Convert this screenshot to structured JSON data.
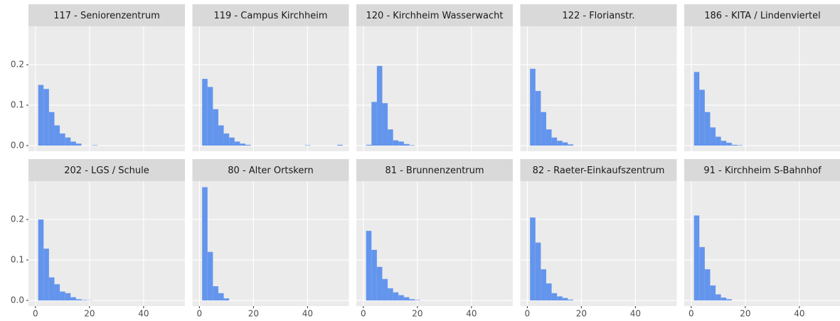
{
  "chart_data": [
    {
      "type": "histogram",
      "title": "117 - Seniorenzentrum",
      "bins": [
        1,
        3,
        5,
        7,
        9,
        11,
        13,
        15,
        17,
        19,
        21,
        23
      ],
      "values": [
        0.15,
        0.14,
        0.083,
        0.05,
        0.03,
        0.02,
        0.01,
        0.005,
        0,
        0,
        0.001
      ],
      "color": "#6495ed",
      "xlim": [
        -2.6,
        55.3
      ],
      "ylim": [
        -0.014,
        0.295
      ],
      "xticks": [
        0,
        20,
        40
      ],
      "yticks": [
        0.0,
        0.1,
        0.2
      ],
      "grid": true
    },
    {
      "type": "histogram",
      "title": "119 - Campus Kirchheim",
      "bins": [
        1,
        3,
        5,
        7,
        9,
        11,
        13,
        15,
        17,
        19,
        21,
        23,
        25,
        27,
        29,
        31,
        33,
        35,
        37,
        39,
        41,
        43,
        45,
        47,
        49,
        51,
        53
      ],
      "values": [
        0.165,
        0.145,
        0.09,
        0.05,
        0.03,
        0.02,
        0.01,
        0.005,
        0.002,
        0,
        0,
        0,
        0,
        0,
        0,
        0,
        0,
        0,
        0,
        0.001,
        0,
        0,
        0,
        0,
        0,
        0.002
      ],
      "color": "#6495ed",
      "xlim": [
        -2.6,
        55.3
      ],
      "ylim": [
        -0.014,
        0.295
      ],
      "xticks": [
        0,
        20,
        40
      ],
      "yticks": [
        0.0,
        0.1,
        0.2
      ],
      "grid": true
    },
    {
      "type": "histogram",
      "title": "120 - Kirchheim Wasserwacht",
      "bins": [
        1,
        3,
        5,
        7,
        9,
        11,
        13,
        15,
        17,
        19
      ],
      "values": [
        0.002,
        0.108,
        0.197,
        0.105,
        0.04,
        0.013,
        0.01,
        0.004,
        0.001
      ],
      "color": "#6495ed",
      "xlim": [
        -2.6,
        55.3
      ],
      "ylim": [
        -0.014,
        0.295
      ],
      "xticks": [
        0,
        20,
        40
      ],
      "yticks": [
        0.0,
        0.1,
        0.2
      ],
      "grid": true
    },
    {
      "type": "histogram",
      "title": "122 - Florianstr.",
      "bins": [
        1,
        3,
        5,
        7,
        9,
        11,
        13,
        15,
        17
      ],
      "values": [
        0.19,
        0.135,
        0.083,
        0.04,
        0.02,
        0.012,
        0.008,
        0.003
      ],
      "color": "#6495ed",
      "xlim": [
        -2.6,
        55.3
      ],
      "ylim": [
        -0.014,
        0.295
      ],
      "xticks": [
        0,
        20,
        40
      ],
      "yticks": [
        0.0,
        0.1,
        0.2
      ],
      "grid": true
    },
    {
      "type": "histogram",
      "title": "186 - KITA / Lindenviertel",
      "bins": [
        1,
        3,
        5,
        7,
        9,
        11,
        13,
        15,
        17,
        19
      ],
      "values": [
        0.182,
        0.138,
        0.083,
        0.045,
        0.022,
        0.012,
        0.007,
        0.002,
        0.001
      ],
      "color": "#6495ed",
      "xlim": [
        -2.6,
        55.3
      ],
      "ylim": [
        -0.014,
        0.295
      ],
      "xticks": [
        0,
        20,
        40
      ],
      "yticks": [
        0.0,
        0.1,
        0.2
      ],
      "grid": true
    },
    {
      "type": "histogram",
      "title": "202 - LGS / Schule",
      "bins": [
        1,
        3,
        5,
        7,
        9,
        11,
        13,
        15,
        17,
        19,
        21
      ],
      "values": [
        0.2,
        0.128,
        0.057,
        0.04,
        0.022,
        0.018,
        0.008,
        0.003,
        0.001,
        0.0005
      ],
      "color": "#6495ed",
      "xlim": [
        -2.6,
        55.3
      ],
      "ylim": [
        -0.014,
        0.295
      ],
      "xticks": [
        0,
        20,
        40
      ],
      "yticks": [
        0.0,
        0.1,
        0.2
      ],
      "grid": true
    },
    {
      "type": "histogram",
      "title": "80 - Alter Ortskern",
      "bins": [
        1,
        3,
        5,
        7,
        9,
        11
      ],
      "values": [
        0.28,
        0.12,
        0.035,
        0.018,
        0.005
      ],
      "color": "#6495ed",
      "xlim": [
        -2.6,
        55.3
      ],
      "ylim": [
        -0.014,
        0.295
      ],
      "xticks": [
        0,
        20,
        40
      ],
      "yticks": [
        0.0,
        0.1,
        0.2
      ],
      "grid": true
    },
    {
      "type": "histogram",
      "title": "81 - Brunnenzentrum",
      "bins": [
        1,
        3,
        5,
        7,
        9,
        11,
        13,
        15,
        17,
        19,
        21
      ],
      "values": [
        0.172,
        0.125,
        0.083,
        0.053,
        0.03,
        0.02,
        0.013,
        0.008,
        0.003,
        0.001
      ],
      "color": "#6495ed",
      "xlim": [
        -2.6,
        55.3
      ],
      "ylim": [
        -0.014,
        0.295
      ],
      "xticks": [
        0,
        20,
        40
      ],
      "yticks": [
        0.0,
        0.1,
        0.2
      ],
      "grid": true
    },
    {
      "type": "histogram",
      "title": "82 - Raeter-Einkaufszentrum",
      "bins": [
        1,
        3,
        5,
        7,
        9,
        11,
        13,
        15,
        17
      ],
      "values": [
        0.205,
        0.143,
        0.077,
        0.042,
        0.018,
        0.01,
        0.006,
        0.002
      ],
      "color": "#6495ed",
      "xlim": [
        -2.6,
        55.3
      ],
      "ylim": [
        -0.014,
        0.295
      ],
      "xticks": [
        0,
        20,
        40
      ],
      "yticks": [
        0.0,
        0.1,
        0.2
      ],
      "grid": true
    },
    {
      "type": "histogram",
      "title": "91 - Kirchheim S-Bahnhof",
      "bins": [
        1,
        3,
        5,
        7,
        9,
        11,
        13,
        15
      ],
      "values": [
        0.21,
        0.132,
        0.077,
        0.037,
        0.015,
        0.007,
        0.003
      ],
      "color": "#6495ed",
      "xlim": [
        -2.6,
        55.3
      ],
      "ylim": [
        -0.014,
        0.295
      ],
      "xticks": [
        0,
        20,
        40
      ],
      "yticks": [
        0.0,
        0.1,
        0.2
      ],
      "grid": true
    }
  ]
}
